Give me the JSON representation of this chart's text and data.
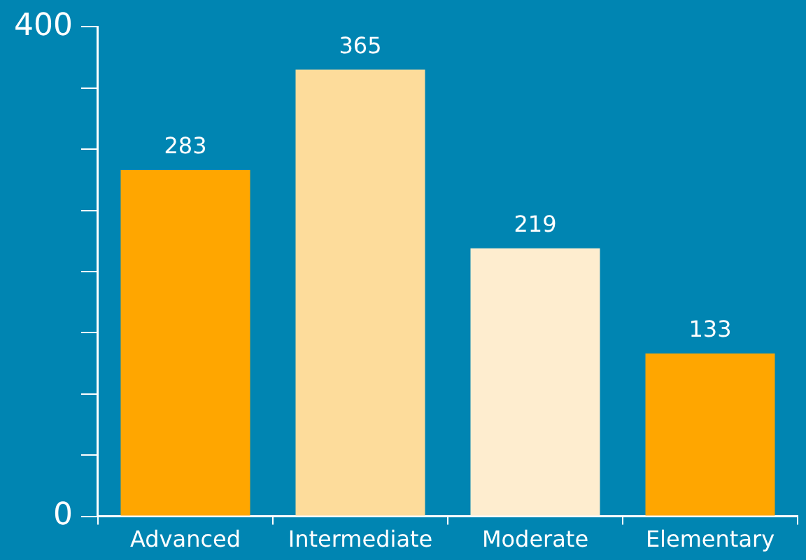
{
  "chart_data": {
    "type": "bar",
    "categories": [
      "Advanced",
      "Intermediate",
      "Moderate",
      "Elementary"
    ],
    "values": [
      283,
      365,
      219,
      133
    ],
    "colors": [
      "#ffa600",
      "#fddc9b",
      "#feedcf",
      "#ffa600"
    ],
    "ylim": [
      0,
      400
    ],
    "yticks": [
      0,
      {
        "value": 50,
        "label": null
      },
      {
        "value": 100,
        "label": null
      },
      {
        "value": 150,
        "label": null
      },
      {
        "value": 200,
        "label": null
      },
      {
        "value": 250,
        "label": null
      },
      {
        "value": 300,
        "label": null
      },
      {
        "value": 350,
        "label": null
      },
      400
    ],
    "data_labels": true
  }
}
